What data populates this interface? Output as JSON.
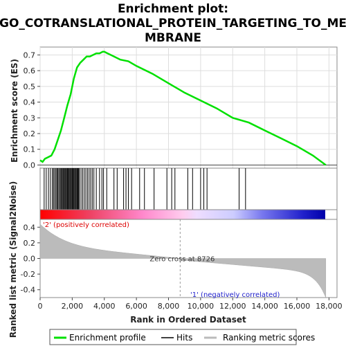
{
  "chart_data": {
    "type": "line",
    "title": [
      "Enrichment plot:",
      "GO_COTRANSLATIONAL_PROTEIN_TARGETING_TO_ME",
      "MBRANE"
    ],
    "xlabel": "Rank in Ordered Dataset",
    "ylabel_top": "Enrichment score (ES)",
    "ylabel_bottom": [
      "Ranked list metric (Signal2Noise)"
    ],
    "xlim": [
      0,
      18500
    ],
    "x_ticks": [
      "0",
      "2,000",
      "4,000",
      "6,000",
      "8,000",
      "10,000",
      "12,000",
      "14,000",
      "16,000",
      "18,000"
    ],
    "x_tick_values": [
      0,
      2000,
      4000,
      6000,
      8000,
      10000,
      12000,
      14000,
      16000,
      18000
    ],
    "es_ylim": [
      -0.02,
      0.75
    ],
    "es_ticks": [
      "0.0",
      "0.1",
      "0.2",
      "0.3",
      "0.4",
      "0.5",
      "0.6",
      "0.7"
    ],
    "es_tick_values": [
      0.0,
      0.1,
      0.2,
      0.3,
      0.4,
      0.5,
      0.6,
      0.7
    ],
    "metric_ylim": [
      -0.5,
      0.5
    ],
    "metric_ticks": [
      "0.4",
      "0.2",
      "0.0",
      "-0.2",
      "-0.4"
    ],
    "metric_tick_values": [
      0.4,
      0.2,
      0.0,
      -0.2,
      -0.4
    ],
    "enrichment_profile": {
      "name": "Enrichment profile",
      "color": "#00dd00",
      "x": [
        0,
        150,
        300,
        500,
        700,
        900,
        1100,
        1300,
        1500,
        1700,
        1900,
        2100,
        2300,
        2500,
        2700,
        2900,
        3100,
        3300,
        3500,
        3700,
        3900,
        4000,
        4200,
        4600,
        5000,
        5500,
        6000,
        7000,
        8000,
        9000,
        10000,
        11000,
        12000,
        13000,
        14000,
        15000,
        16000,
        17000,
        17800
      ],
      "y": [
        0.03,
        0.02,
        0.04,
        0.05,
        0.06,
        0.1,
        0.16,
        0.22,
        0.3,
        0.38,
        0.45,
        0.55,
        0.62,
        0.65,
        0.67,
        0.69,
        0.69,
        0.7,
        0.71,
        0.71,
        0.72,
        0.72,
        0.71,
        0.69,
        0.67,
        0.66,
        0.63,
        0.58,
        0.52,
        0.46,
        0.41,
        0.36,
        0.3,
        0.27,
        0.22,
        0.17,
        0.12,
        0.06,
        0.0
      ]
    },
    "hits": [
      250,
      380,
      520,
      640,
      760,
      830,
      900,
      980,
      1040,
      1100,
      1160,
      1230,
      1290,
      1340,
      1390,
      1450,
      1500,
      1550,
      1600,
      1650,
      1700,
      1750,
      1800,
      1850,
      1900,
      1950,
      2000,
      2050,
      2100,
      2150,
      2200,
      2250,
      2300,
      2350,
      2400,
      2450,
      2550,
      2650,
      2750,
      2850,
      2950,
      3050,
      3150,
      3250,
      3350,
      3500,
      3700,
      3850,
      3950,
      4150,
      4600,
      4800,
      5200,
      5350,
      5500,
      5700,
      6200,
      6500,
      7100,
      7900,
      8200,
      8400,
      9200,
      9500,
      10000,
      10200,
      10400,
      12400,
      12800
    ],
    "zero_cross": 8726,
    "zero_cross_label": "Zero cross at 8726",
    "pos_label": "'2' (positively correlated)",
    "neg_label": "'1' (negatively correlated)",
    "n_genes": 17800,
    "legend": [
      "Enrichment profile",
      "Hits",
      "Ranking metric scores"
    ]
  }
}
